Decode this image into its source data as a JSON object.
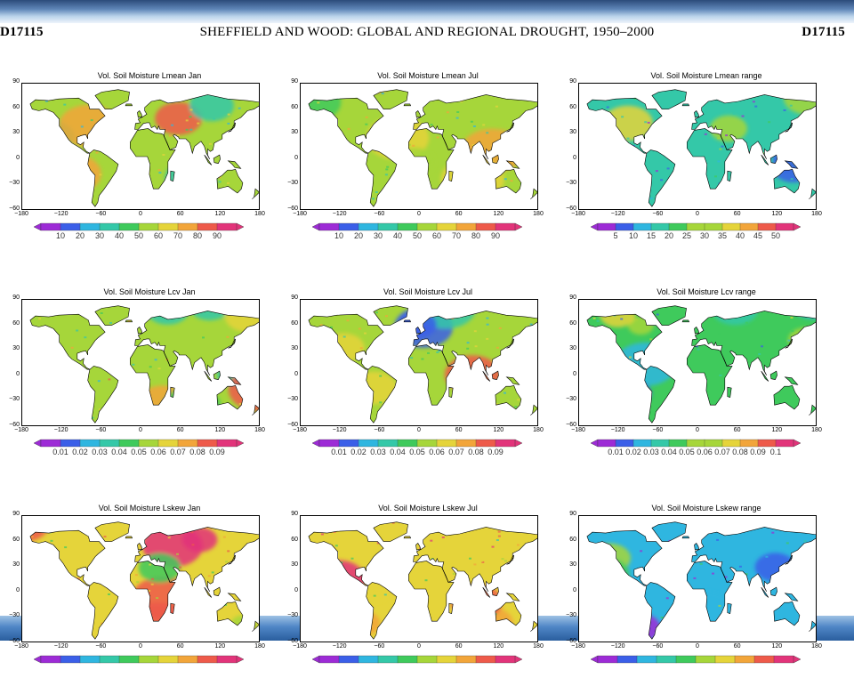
{
  "header": {
    "page_id_left": "D17115",
    "running_title": "SHEFFIELD AND WOOD: GLOBAL AND REGIONAL DROUGHT, 1950–2000",
    "page_id_right": "D17115"
  },
  "axes": {
    "y_ticks": [
      "90",
      "60",
      "30",
      "0",
      "−30",
      "−60"
    ],
    "x_ticks": [
      "−180",
      "−120",
      "−60",
      "0",
      "60",
      "120",
      "180"
    ]
  },
  "colors": {
    "land_palette": [
      "#9d2bd6",
      "#3b5fe8",
      "#2fb6e0",
      "#34c8a8",
      "#3fca5c",
      "#a6d63a",
      "#e5d43a",
      "#f2a53a",
      "#ee5a4a",
      "#e2347a"
    ],
    "ocean": "#ffffff",
    "coastline": "#000000"
  },
  "chart_data": [
    {
      "type": "heatmap",
      "title": "Vol. Soil Moisture Lmean Jan",
      "xlim": [
        -180,
        180
      ],
      "ylim": [
        -60,
        90
      ],
      "colorbar": {
        "palette": "rainbow",
        "labels": [
          "10",
          "20",
          "30",
          "40",
          "50",
          "60",
          "70",
          "80",
          "90"
        ]
      },
      "dominant_level": 0.5
    },
    {
      "type": "heatmap",
      "title": "Vol. Soil Moisture Lmean Jul",
      "xlim": [
        -180,
        180
      ],
      "ylim": [
        -60,
        90
      ],
      "colorbar": {
        "palette": "rainbow",
        "labels": [
          "10",
          "20",
          "30",
          "40",
          "50",
          "60",
          "70",
          "80",
          "90"
        ]
      },
      "dominant_level": 0.5
    },
    {
      "type": "heatmap",
      "title": "Vol. Soil Moisture Lmean range",
      "xlim": [
        -180,
        180
      ],
      "ylim": [
        -60,
        90
      ],
      "colorbar": {
        "palette": "rainbow",
        "labels": [
          "5",
          "10",
          "15",
          "20",
          "25",
          "30",
          "35",
          "40",
          "45",
          "50"
        ]
      },
      "dominant_level": 0.3
    },
    {
      "type": "heatmap",
      "title": "Vol. Soil Moisture Lcv Jan",
      "xlim": [
        -180,
        180
      ],
      "ylim": [
        -60,
        90
      ],
      "colorbar": {
        "palette": "rainbow",
        "labels": [
          "0.01",
          "0.02",
          "0.03",
          "0.04",
          "0.05",
          "0.06",
          "0.07",
          "0.08",
          "0.09"
        ]
      },
      "dominant_level": 0.55
    },
    {
      "type": "heatmap",
      "title": "Vol. Soil Moisture Lcv Jul",
      "xlim": [
        -180,
        180
      ],
      "ylim": [
        -60,
        90
      ],
      "colorbar": {
        "palette": "rainbow",
        "labels": [
          "0.01",
          "0.02",
          "0.03",
          "0.04",
          "0.05",
          "0.06",
          "0.07",
          "0.08",
          "0.09"
        ]
      },
      "dominant_level": 0.5
    },
    {
      "type": "heatmap",
      "title": "Vol. Soil Moisture Lcv range",
      "xlim": [
        -180,
        180
      ],
      "ylim": [
        -60,
        90
      ],
      "colorbar": {
        "palette": "rainbow",
        "labels": [
          "0.01",
          "0.02",
          "0.03",
          "0.04",
          "0.05",
          "0.06",
          "0.07",
          "0.08",
          "0.09",
          "0.1"
        ]
      },
      "dominant_level": 0.4
    },
    {
      "type": "heatmap",
      "title": "Vol. Soil Moisture Lskew Jan",
      "xlim": [
        -180,
        180
      ],
      "ylim": [
        -60,
        90
      ],
      "colorbar": {
        "palette": "rainbow",
        "labels": []
      },
      "dominant_level": 0.65
    },
    {
      "type": "heatmap",
      "title": "Vol. Soil Moisture Lskew Jul",
      "xlim": [
        -180,
        180
      ],
      "ylim": [
        -60,
        90
      ],
      "colorbar": {
        "palette": "rainbow",
        "labels": []
      },
      "dominant_level": 0.65
    },
    {
      "type": "heatmap",
      "title": "Vol. Soil Moisture Lskew range",
      "xlim": [
        -180,
        180
      ],
      "ylim": [
        -60,
        90
      ],
      "colorbar": {
        "palette": "rainbow",
        "labels": []
      },
      "dominant_level": 0.25
    }
  ]
}
